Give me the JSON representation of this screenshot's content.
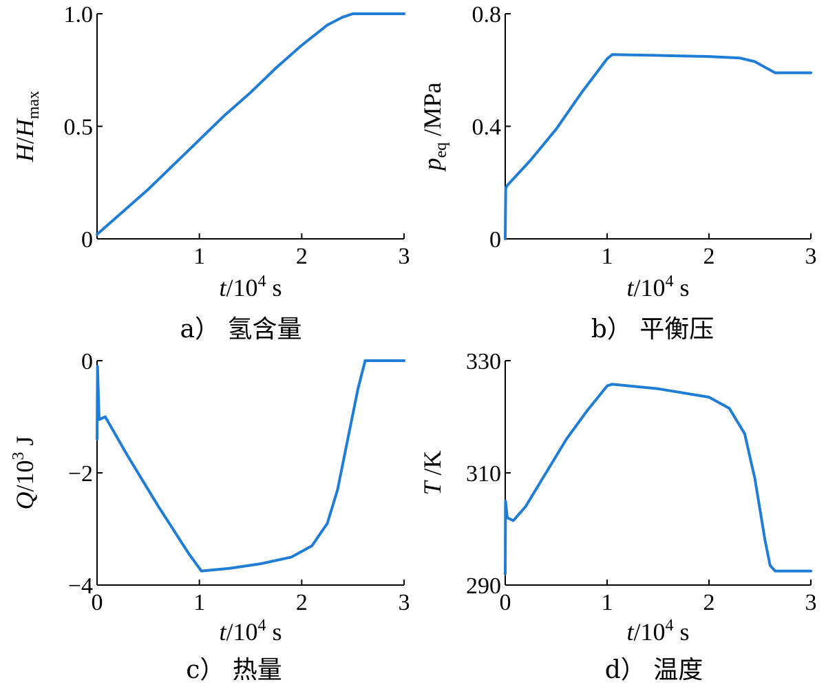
{
  "chart_data": [
    {
      "type": "line",
      "id": "a",
      "caption": "a） 氢含量",
      "ylabel": {
        "italic1": "H",
        "slash": "/",
        "italic2": "H",
        "sub": "max"
      },
      "xlabel": {
        "italic": "t",
        "slash": "/",
        "base": "10",
        "sup": "4",
        "unit": " s"
      },
      "xlim": [
        0,
        3
      ],
      "ylim": [
        0,
        1.0
      ],
      "xticks": [
        {
          "v": 1,
          "label": "1"
        },
        {
          "v": 2,
          "label": "2"
        },
        {
          "v": 3,
          "label": "3"
        }
      ],
      "yticks": [
        {
          "v": 0,
          "label": "0"
        },
        {
          "v": 0.5,
          "label": "0.5"
        },
        {
          "v": 1.0,
          "label": "1.0"
        }
      ],
      "series": [
        {
          "color": "#1f7dd6",
          "x": [
            0,
            0.25,
            0.5,
            0.75,
            1.0,
            1.25,
            1.5,
            1.75,
            2.0,
            2.25,
            2.4,
            2.5,
            2.55,
            3.0
          ],
          "y": [
            0.02,
            0.12,
            0.22,
            0.33,
            0.44,
            0.55,
            0.65,
            0.76,
            0.86,
            0.95,
            0.985,
            1.0,
            1.0,
            1.0
          ]
        }
      ]
    },
    {
      "type": "line",
      "id": "b",
      "caption": "b） 平衡压",
      "ylabel": {
        "italic1": "p",
        "sub": "eq",
        "slash": " /",
        "unit": "MPa"
      },
      "xlabel": {
        "italic": "t",
        "slash": "/",
        "base": "10",
        "sup": "4",
        "unit": " s"
      },
      "xlim": [
        0,
        3
      ],
      "ylim": [
        0,
        0.8
      ],
      "xticks": [
        {
          "v": 1,
          "label": "1"
        },
        {
          "v": 2,
          "label": "2"
        },
        {
          "v": 3,
          "label": "3"
        }
      ],
      "yticks": [
        {
          "v": 0,
          "label": "0"
        },
        {
          "v": 0.4,
          "label": "0.4"
        },
        {
          "v": 0.8,
          "label": "0.8"
        }
      ],
      "series": [
        {
          "color": "#1f7dd6",
          "x": [
            0,
            0.005,
            0.02,
            0.25,
            0.5,
            0.75,
            1.0,
            1.05,
            1.5,
            2.0,
            2.3,
            2.45,
            2.55,
            2.65,
            3.0
          ],
          "y": [
            0,
            0.18,
            0.19,
            0.28,
            0.39,
            0.52,
            0.64,
            0.655,
            0.652,
            0.648,
            0.643,
            0.63,
            0.61,
            0.59,
            0.59
          ]
        }
      ]
    },
    {
      "type": "line",
      "id": "c",
      "caption": "c） 热量",
      "ylabel": {
        "italic1": "Q",
        "slash": "/",
        "base": "10",
        "sup": "3",
        "unit": " J"
      },
      "xlabel": {
        "italic": "t",
        "slash": "/",
        "base": "10",
        "sup": "4",
        "unit": " s"
      },
      "xlim": [
        0,
        3
      ],
      "ylim": [
        -4,
        0
      ],
      "xticks": [
        {
          "v": 0,
          "label": "0"
        },
        {
          "v": 1,
          "label": "1"
        },
        {
          "v": 2,
          "label": "2"
        },
        {
          "v": 3,
          "label": "3"
        }
      ],
      "yticks": [
        {
          "v": -4,
          "label": "−4"
        },
        {
          "v": -2,
          "label": "−2"
        },
        {
          "v": 0,
          "label": "0"
        }
      ],
      "series": [
        {
          "color": "#1f7dd6",
          "x": [
            0,
            0.005,
            0.02,
            0.08,
            0.3,
            0.6,
            0.9,
            1.02,
            1.3,
            1.6,
            1.9,
            2.1,
            2.25,
            2.35,
            2.45,
            2.55,
            2.62,
            2.65,
            3.0
          ],
          "y": [
            -1.4,
            -0.1,
            -1.05,
            -1.0,
            -1.7,
            -2.6,
            -3.45,
            -3.75,
            -3.7,
            -3.62,
            -3.5,
            -3.3,
            -2.9,
            -2.3,
            -1.4,
            -0.5,
            0,
            0,
            0
          ]
        }
      ]
    },
    {
      "type": "line",
      "id": "d",
      "caption": "d） 温度",
      "ylabel": {
        "italic1": "T",
        "slash": " /",
        "unit": "K"
      },
      "xlabel": {
        "italic": "t",
        "slash": "/",
        "base": "10",
        "sup": "4",
        "unit": " s"
      },
      "xlim": [
        0,
        3
      ],
      "ylim": [
        290,
        330
      ],
      "xticks": [
        {
          "v": 0,
          "label": "0"
        },
        {
          "v": 1,
          "label": "1"
        },
        {
          "v": 2,
          "label": "2"
        },
        {
          "v": 3,
          "label": "3"
        }
      ],
      "yticks": [
        {
          "v": 290,
          "label": "290"
        },
        {
          "v": 310,
          "label": "310"
        },
        {
          "v": 330,
          "label": "330"
        }
      ],
      "series": [
        {
          "color": "#1f7dd6",
          "x": [
            0,
            0.003,
            0.02,
            0.08,
            0.2,
            0.4,
            0.6,
            0.8,
            1.0,
            1.05,
            1.5,
            2.0,
            2.2,
            2.35,
            2.45,
            2.55,
            2.6,
            2.65,
            3.0
          ],
          "y": [
            292,
            305,
            302,
            301.5,
            304,
            310,
            316,
            321,
            325.5,
            325.8,
            325,
            323.5,
            321.5,
            317,
            309,
            298,
            293.5,
            292.5,
            292.5
          ]
        }
      ]
    }
  ]
}
